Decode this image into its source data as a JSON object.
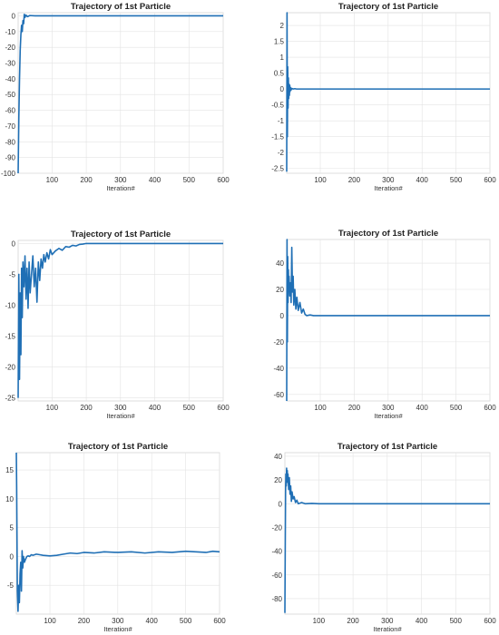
{
  "chart_data": [
    {
      "type": "line",
      "title": "Trajectory of 1st Particle",
      "xlabel": "Iteration#",
      "ylabel": "",
      "xlim": [
        1,
        600
      ],
      "ylim": [
        -100,
        2
      ],
      "x_ticks": [
        100,
        200,
        300,
        400,
        500,
        600
      ],
      "y_ticks": [
        0,
        -10,
        -20,
        -30,
        -40,
        -50,
        -60,
        -70,
        -80,
        -90,
        -100
      ],
      "grid": true,
      "series": [
        {
          "x": [
            1,
            3,
            5,
            7,
            9,
            11,
            13,
            15,
            17,
            19,
            21,
            24,
            28,
            35,
            50,
            80,
            120,
            200,
            300,
            400,
            500,
            600
          ],
          "y": [
            -100,
            -65,
            -40,
            -22,
            -12,
            -6,
            -10,
            -3,
            -5,
            1,
            -1,
            0.5,
            -0.5,
            0.2,
            0,
            0,
            0,
            0,
            0,
            0,
            0,
            0
          ]
        }
      ]
    },
    {
      "type": "line",
      "title": "Trajectory of 1st Particle",
      "xlabel": "Iteration#",
      "ylabel": "",
      "xlim": [
        1,
        600
      ],
      "ylim": [
        -2.65,
        2.4
      ],
      "x_ticks": [
        100,
        200,
        300,
        400,
        500,
        600
      ],
      "y_ticks": [
        2,
        1.5,
        1,
        0.5,
        0,
        -0.5,
        -1,
        -1.5,
        -2,
        -2.5
      ],
      "grid": true,
      "series": [
        {
          "x": [
            1,
            2,
            3,
            4,
            5,
            6,
            7,
            8,
            9,
            10,
            11,
            12,
            14,
            16,
            20,
            25,
            30,
            40,
            60,
            100,
            200,
            300,
            400,
            500,
            600
          ],
          "y": [
            -2.6,
            2.4,
            -1.5,
            0.7,
            -0.6,
            0.35,
            -0.3,
            0.15,
            -0.2,
            0.12,
            -0.08,
            0.05,
            -0.03,
            0.02,
            0,
            0.01,
            0,
            0,
            0,
            0,
            0,
            0,
            0,
            0,
            0
          ]
        }
      ]
    },
    {
      "type": "line",
      "title": "Trajectory of 1st Particle",
      "xlabel": "Iteration#",
      "ylabel": "",
      "xlim": [
        1,
        600
      ],
      "ylim": [
        -25.5,
        0.5
      ],
      "x_ticks": [
        100,
        200,
        300,
        400,
        500,
        600
      ],
      "y_ticks": [
        0,
        -5,
        -10,
        -15,
        -20,
        -25
      ],
      "grid": true,
      "series": [
        {
          "x": [
            1,
            3,
            5,
            7,
            9,
            11,
            13,
            15,
            18,
            21,
            24,
            27,
            30,
            33,
            36,
            40,
            44,
            48,
            52,
            56,
            60,
            64,
            68,
            72,
            76,
            80,
            85,
            90,
            95,
            100,
            110,
            120,
            130,
            140,
            150,
            160,
            170,
            180,
            190,
            200,
            250,
            300,
            400,
            500,
            600
          ],
          "y": [
            -25,
            -5,
            -22,
            -8,
            -18,
            -4,
            -12,
            -3,
            -7,
            -2,
            -9,
            -4,
            -10.5,
            -3,
            -8,
            -5,
            -2,
            -7,
            -4,
            -9.5,
            -3,
            -6,
            -2.5,
            -4,
            -1.8,
            -3,
            -1.5,
            -2.5,
            -1,
            -1.8,
            -1.2,
            -0.8,
            -1.1,
            -0.5,
            -0.6,
            -0.3,
            -0.4,
            -0.15,
            -0.1,
            0,
            0,
            0,
            0,
            0,
            0
          ]
        }
      ]
    },
    {
      "type": "line",
      "title": "Trajectory of 1st Particle",
      "xlabel": "Iteration#",
      "ylabel": "",
      "xlim": [
        1,
        600
      ],
      "ylim": [
        -65,
        58
      ],
      "x_ticks": [
        100,
        200,
        300,
        400,
        500,
        600
      ],
      "y_ticks": [
        40,
        20,
        0,
        -20,
        -40,
        -60
      ],
      "grid": true,
      "series": [
        {
          "x": [
            1,
            2,
            3,
            4,
            5,
            6,
            7,
            8,
            10,
            12,
            14,
            16,
            18,
            20,
            22,
            25,
            28,
            31,
            35,
            40,
            45,
            50,
            55,
            60,
            70,
            80,
            100,
            150,
            200,
            300,
            400,
            500,
            600
          ],
          "y": [
            -65,
            58,
            -20,
            45,
            10,
            35,
            20,
            30,
            15,
            25,
            10,
            52,
            18,
            30,
            8,
            20,
            5,
            14,
            4,
            10,
            2,
            5,
            1,
            0,
            0.5,
            0,
            0,
            0,
            0,
            0,
            0,
            0,
            0
          ]
        }
      ]
    },
    {
      "type": "line",
      "title": "Trajectory of 1st Particle",
      "xlabel": "Iteration#",
      "ylabel": "",
      "xlim": [
        1,
        600
      ],
      "ylim": [
        -10,
        18
      ],
      "x_ticks": [
        100,
        200,
        300,
        400,
        500,
        600
      ],
      "y_ticks": [
        15,
        10,
        5,
        0,
        -5
      ],
      "grid": true,
      "series": [
        {
          "x": [
            1,
            2,
            4,
            6,
            8,
            10,
            12,
            14,
            16,
            18,
            20,
            22,
            25,
            28,
            32,
            36,
            40,
            45,
            50,
            60,
            70,
            80,
            100,
            120,
            140,
            160,
            180,
            200,
            230,
            260,
            300,
            340,
            380,
            420,
            460,
            500,
            530,
            560,
            580,
            600
          ],
          "y": [
            18,
            12,
            -6,
            -9.5,
            -5,
            -8,
            -3,
            -1,
            -6,
            1,
            -2,
            0,
            -1,
            -0.5,
            0,
            0.1,
            0,
            0.3,
            0.2,
            0.4,
            0.3,
            0.2,
            0.1,
            0.2,
            0.4,
            0.6,
            0.5,
            0.7,
            0.6,
            0.8,
            0.7,
            0.8,
            0.6,
            0.8,
            0.7,
            0.9,
            0.8,
            0.7,
            0.9,
            0.8
          ]
        }
      ]
    },
    {
      "type": "line",
      "title": "Trajectory of 1st Particle",
      "xlabel": "Iteration#",
      "ylabel": "",
      "xlim": [
        1,
        600
      ],
      "ylim": [
        -93,
        43
      ],
      "x_ticks": [
        100,
        200,
        300,
        400,
        500,
        600
      ],
      "y_ticks": [
        40,
        20,
        0,
        -20,
        -40,
        -60,
        -80
      ],
      "grid": true,
      "series": [
        {
          "x": [
            1,
            2,
            3,
            4,
            5,
            6,
            7,
            8,
            9,
            10,
            12,
            14,
            16,
            18,
            20,
            22,
            25,
            28,
            32,
            36,
            40,
            50,
            60,
            80,
            100,
            200,
            300,
            400,
            500,
            600
          ],
          "y": [
            -92,
            -40,
            10,
            25,
            15,
            30,
            18,
            28,
            20,
            25,
            12,
            22,
            8,
            15,
            2,
            10,
            4,
            6,
            1,
            3,
            0,
            1,
            0,
            0.3,
            0,
            0,
            0,
            0,
            0,
            0
          ]
        }
      ]
    }
  ]
}
